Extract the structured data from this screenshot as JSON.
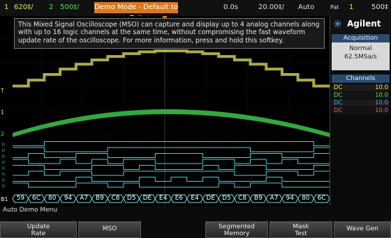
{
  "topbar": {
    "ch1_num": "1",
    "ch1_scale": "620‡/",
    "ch2_num": "2",
    "ch2_scale": "500‡/",
    "demo_label": "Demo Mode - Default to Exit",
    "time_offset": "0.0s",
    "timebase": "20.00‡/",
    "trigger_mode": "Auto",
    "pat_label": "Pat",
    "pat_num": "1",
    "pat_value": "500‡"
  },
  "info_text": "This Mixed Signal Oscilloscope (MSO) can capture and display up to 4 analog channels along with up to 16 logic channels at the same time, without compromising the fast waveform update rate of the oscilloscope. For more information, press and hold this softkey.",
  "side": {
    "brand_name": "Agilent",
    "acq_title": "Acquisition",
    "acq_mode": "Normal",
    "acq_rate": "62.5MSa/s",
    "channels_title": "Channels",
    "channels": [
      {
        "coupling": "DC",
        "value": "10.0",
        "color": "#e6e65a"
      },
      {
        "coupling": "DC",
        "value": "10.0",
        "color": "#57e05a"
      },
      {
        "coupling": "DC",
        "value": "10.0",
        "color": "#4aa3ff"
      },
      {
        "coupling": "DC",
        "value": "10.0",
        "color": "#ff4a7a"
      }
    ]
  },
  "bus": {
    "label": "B1",
    "values": [
      "59",
      "6C",
      "80",
      "94",
      "A7",
      "B9",
      "C8",
      "D5",
      "DE",
      "E4",
      "E6",
      "E4",
      "DE",
      "D5",
      "C8",
      "B9",
      "A7",
      "94",
      "80",
      "6C"
    ]
  },
  "menu_title": "Auto Demo Menu",
  "softkeys": [
    {
      "line1": "Update",
      "line2": "Rate"
    },
    {
      "line1": "MSO",
      "line2": ""
    },
    {
      "line1": "Segmented",
      "line2": "Memory"
    },
    {
      "line1": "Mask",
      "line2": "Test"
    },
    {
      "line1": "Wave Gen",
      "line2": ""
    }
  ],
  "colors": {
    "ch1": "#e6e65a",
    "ch2": "#57e05a",
    "digital": "#49d3dd",
    "bus": "#6ce3e8",
    "accent": "#d8791f"
  }
}
